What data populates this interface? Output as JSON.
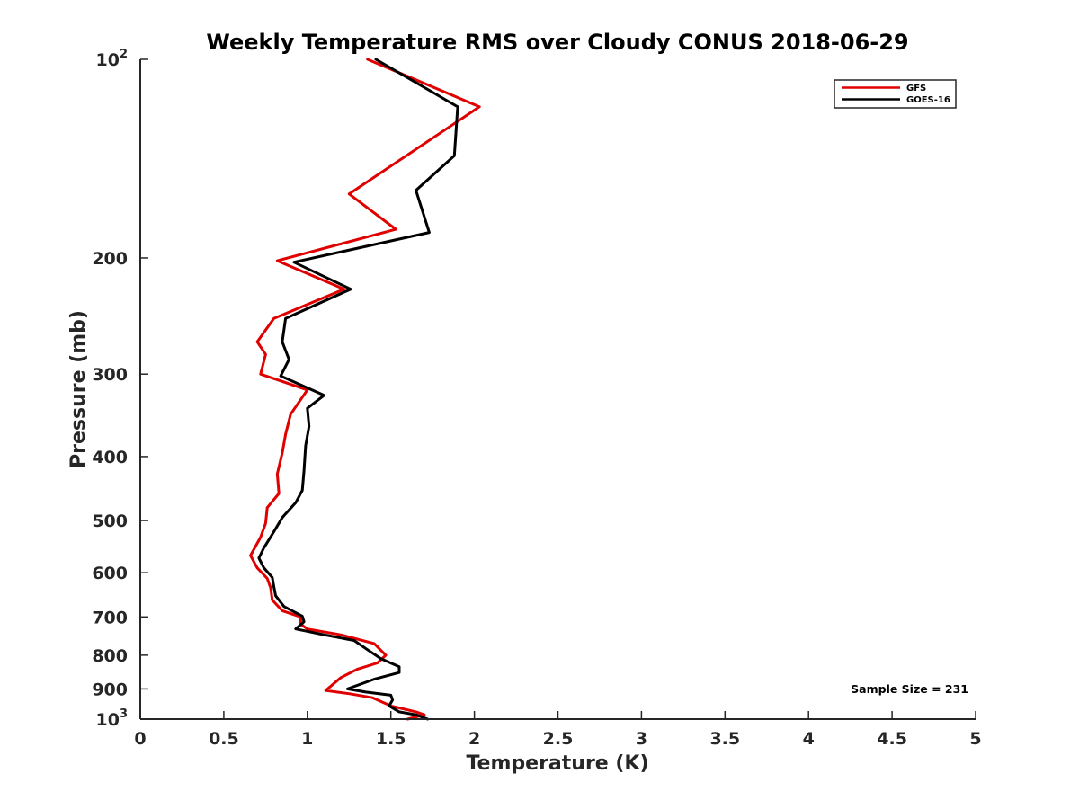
{
  "chart_data": {
    "type": "line",
    "title": "Weekly Temperature RMS over Cloudy CONUS 2018-06-29",
    "xlabel": "Temperature (K)",
    "ylabel": "Pressure (mb)",
    "xlim": [
      0,
      5
    ],
    "ylim": [
      100,
      1000
    ],
    "y_scale": "log",
    "y_reversed": true,
    "grid": false,
    "legend_position": "top-right",
    "x_ticks": [
      "0",
      "0.5",
      "1",
      "1.5",
      "2",
      "2.5",
      "3",
      "3.5",
      "4",
      "4.5",
      "5"
    ],
    "y_ticks": [
      {
        "value": 100,
        "base": "10",
        "exp": "2"
      },
      {
        "value": 200,
        "label": "200"
      },
      {
        "value": 300,
        "label": "300"
      },
      {
        "value": 400,
        "label": "400"
      },
      {
        "value": 500,
        "label": "500"
      },
      {
        "value": 600,
        "label": "600"
      },
      {
        "value": 700,
        "label": "700"
      },
      {
        "value": 800,
        "label": "800"
      },
      {
        "value": 900,
        "label": "900"
      },
      {
        "value": 1000,
        "base": "10",
        "exp": "3"
      }
    ],
    "annotation": "Sample Size = 231",
    "series": [
      {
        "name": "GFS",
        "color": "#e00000",
        "points": [
          [
            1.36,
            100
          ],
          [
            2.03,
            118
          ],
          [
            1.25,
            160
          ],
          [
            1.53,
            181
          ],
          [
            0.82,
            202
          ],
          [
            1.22,
            223
          ],
          [
            0.8,
            247
          ],
          [
            0.7,
            268
          ],
          [
            0.75,
            280
          ],
          [
            0.72,
            300
          ],
          [
            1.0,
            317
          ],
          [
            0.9,
            345
          ],
          [
            0.87,
            370
          ],
          [
            0.85,
            395
          ],
          [
            0.82,
            425
          ],
          [
            0.83,
            455
          ],
          [
            0.76,
            478
          ],
          [
            0.75,
            505
          ],
          [
            0.72,
            530
          ],
          [
            0.66,
            565
          ],
          [
            0.7,
            590
          ],
          [
            0.76,
            612
          ],
          [
            0.78,
            632
          ],
          [
            0.79,
            660
          ],
          [
            0.85,
            685
          ],
          [
            0.96,
            700
          ],
          [
            0.96,
            718
          ],
          [
            1.0,
            730
          ],
          [
            1.2,
            745
          ],
          [
            1.4,
            768
          ],
          [
            1.47,
            800
          ],
          [
            1.42,
            822
          ],
          [
            1.3,
            840
          ],
          [
            1.2,
            865
          ],
          [
            1.11,
            905
          ],
          [
            1.25,
            915
          ],
          [
            1.39,
            928
          ],
          [
            1.5,
            955
          ],
          [
            1.65,
            975
          ],
          [
            1.7,
            985
          ],
          [
            1.6,
            1000
          ]
        ]
      },
      {
        "name": "GOES-16",
        "color": "#000000",
        "points": [
          [
            1.41,
            100
          ],
          [
            1.9,
            118
          ],
          [
            1.88,
            140
          ],
          [
            1.65,
            158
          ],
          [
            1.73,
            183
          ],
          [
            0.92,
            203
          ],
          [
            1.26,
            223
          ],
          [
            0.87,
            247
          ],
          [
            0.85,
            268
          ],
          [
            0.89,
            285
          ],
          [
            0.84,
            302
          ],
          [
            1.1,
            323
          ],
          [
            1.0,
            338
          ],
          [
            1.01,
            360
          ],
          [
            0.99,
            385
          ],
          [
            0.98,
            420
          ],
          [
            0.97,
            450
          ],
          [
            0.93,
            470
          ],
          [
            0.85,
            495
          ],
          [
            0.8,
            520
          ],
          [
            0.74,
            550
          ],
          [
            0.71,
            570
          ],
          [
            0.74,
            590
          ],
          [
            0.79,
            610
          ],
          [
            0.8,
            630
          ],
          [
            0.81,
            650
          ],
          [
            0.86,
            675
          ],
          [
            0.97,
            698
          ],
          [
            0.98,
            712
          ],
          [
            0.93,
            730
          ],
          [
            1.1,
            745
          ],
          [
            1.28,
            760
          ],
          [
            1.36,
            785
          ],
          [
            1.44,
            810
          ],
          [
            1.55,
            833
          ],
          [
            1.55,
            850
          ],
          [
            1.4,
            870
          ],
          [
            1.24,
            900
          ],
          [
            1.35,
            910
          ],
          [
            1.5,
            920
          ],
          [
            1.51,
            935
          ],
          [
            1.49,
            955
          ],
          [
            1.55,
            975
          ],
          [
            1.65,
            985
          ],
          [
            1.72,
            1000
          ]
        ]
      }
    ]
  }
}
